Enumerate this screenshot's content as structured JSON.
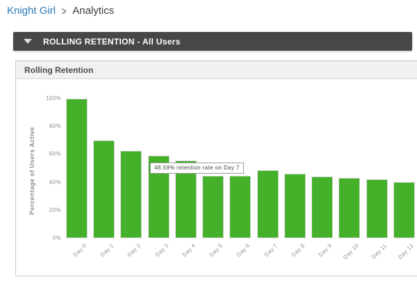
{
  "breadcrumb": {
    "app": "Knight Girl",
    "separator": ">",
    "page": "Analytics"
  },
  "collapse_bar": {
    "title": "ROLLING RETENTION - All Users",
    "icon": "triangle-down-icon"
  },
  "panel": {
    "title": "Rolling Retention"
  },
  "tooltip": {
    "text": "48.59% retention rate on Day 7"
  },
  "chart_data": {
    "type": "bar",
    "title": "Rolling Retention",
    "categories": [
      "Day 0",
      "Day 1",
      "Day 2",
      "Day 3",
      "Day 4",
      "Day 5",
      "Day 6",
      "Day 7",
      "Day 8",
      "Day 9",
      "Day 10",
      "Day 11",
      "Day 12"
    ],
    "values": [
      100,
      70.3,
      62.8,
      59.2,
      55.7,
      44.8,
      44.8,
      48.59,
      46.3,
      44.5,
      43.3,
      42.3,
      40.5
    ],
    "xlabel": "",
    "ylabel": "Percentage of Users Active",
    "yticks": [
      0,
      20,
      40,
      60,
      80,
      100
    ],
    "ytick_labels": [
      "0%",
      "20%",
      "40%",
      "60%",
      "80%",
      "100%"
    ],
    "ylim": [
      0,
      100
    ],
    "grid": false,
    "legend": false,
    "bar_color": "#45b02a",
    "bar_border_color": "#dcdcdc",
    "axis_text_color": "#8f8f8f",
    "annotation": "48.59% retention rate on Day 7"
  }
}
